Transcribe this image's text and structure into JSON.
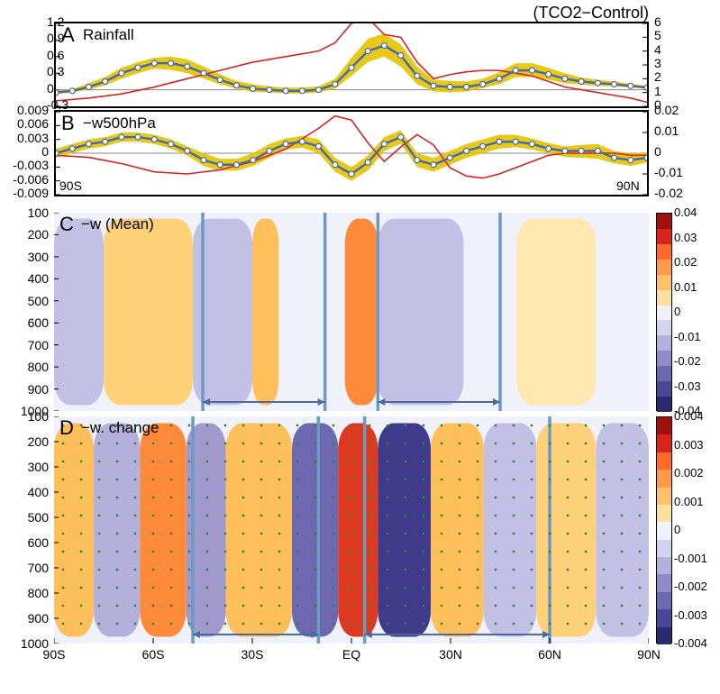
{
  "title": "(TCO2−Control)",
  "xdomain": [
    -90,
    90
  ],
  "xlabels": [
    "90S",
    "60S",
    "30S",
    "EQ",
    "30N",
    "60N",
    "90N"
  ],
  "xlabel_vals": [
    -90,
    -60,
    -30,
    0,
    30,
    60,
    90
  ],
  "panelA": {
    "letter": "A",
    "name": "Rainfall",
    "left_ticks": [
      "-0.3",
      "0",
      "0.3",
      "0.6",
      "0.9",
      "1.2"
    ],
    "left_vals": [
      -0.3,
      0,
      0.3,
      0.6,
      0.9,
      1.2
    ],
    "right_ticks": [
      "0",
      "1",
      "2",
      "3",
      "4",
      "5",
      "6"
    ],
    "right_vals": [
      0,
      1,
      2,
      3,
      4,
      5,
      6
    ],
    "colors": {
      "blue": "#4a6aa0",
      "red": "#d8241f",
      "band": "#e4c400",
      "marker_face": "#ffffff",
      "marker_edge": "#4a6aa0",
      "zero": "#888888"
    },
    "line_widths": {
      "blue": 2.5,
      "red": 1.6,
      "band": 10
    },
    "blue_x": [
      -90,
      -85,
      -80,
      -75,
      -70,
      -65,
      -60,
      -55,
      -50,
      -45,
      -40,
      -35,
      -30,
      -25,
      -20,
      -15,
      -10,
      -5,
      0,
      5,
      10,
      15,
      20,
      25,
      30,
      35,
      40,
      45,
      50,
      55,
      60,
      65,
      70,
      75,
      80,
      85,
      90
    ],
    "blue_y": [
      -0.05,
      -0.02,
      0.05,
      0.15,
      0.3,
      0.4,
      0.48,
      0.48,
      0.42,
      0.3,
      0.18,
      0.08,
      0.02,
      0.0,
      -0.02,
      -0.02,
      0.0,
      0.1,
      0.4,
      0.7,
      0.8,
      0.62,
      0.25,
      0.07,
      0.05,
      0.05,
      0.1,
      0.2,
      0.35,
      0.35,
      0.28,
      0.2,
      0.15,
      0.12,
      0.1,
      0.07,
      0.04
    ],
    "band_lo": [
      -0.08,
      -0.05,
      0.0,
      0.08,
      0.2,
      0.3,
      0.38,
      0.36,
      0.3,
      0.2,
      0.1,
      0.02,
      -0.04,
      -0.05,
      -0.07,
      -0.07,
      -0.05,
      0.02,
      0.25,
      0.5,
      0.6,
      0.42,
      0.1,
      -0.03,
      -0.05,
      -0.03,
      0.03,
      0.1,
      0.23,
      0.23,
      0.18,
      0.12,
      0.09,
      0.07,
      0.06,
      0.04,
      0.02
    ],
    "band_hi": [
      -0.02,
      0.01,
      0.12,
      0.23,
      0.4,
      0.5,
      0.58,
      0.6,
      0.55,
      0.42,
      0.28,
      0.16,
      0.1,
      0.06,
      0.04,
      0.04,
      0.06,
      0.2,
      0.58,
      0.92,
      1.02,
      0.82,
      0.42,
      0.18,
      0.16,
      0.15,
      0.2,
      0.32,
      0.48,
      0.48,
      0.4,
      0.3,
      0.22,
      0.18,
      0.15,
      0.11,
      0.07
    ],
    "red_x": [
      -90,
      -80,
      -70,
      -60,
      -50,
      -40,
      -30,
      -20,
      -10,
      -5,
      0,
      5,
      10,
      15,
      20,
      25,
      30,
      35,
      40,
      45,
      50,
      55,
      60,
      65,
      70,
      75,
      80,
      85,
      90
    ],
    "red_y": [
      0.4,
      0.6,
      0.9,
      1.4,
      2.0,
      2.6,
      3.2,
      3.6,
      4.0,
      4.6,
      6.0,
      6.4,
      5.2,
      5.0,
      3.2,
      2.0,
      2.3,
      2.5,
      2.6,
      2.6,
      2.4,
      2.2,
      1.8,
      1.4,
      1.2,
      1.0,
      0.8,
      0.6,
      0.3
    ],
    "marker_r": 3
  },
  "panelB": {
    "letter": "B",
    "name": "−w500hPa",
    "left_ticks": [
      "-0.009",
      "-0.006",
      "-0.003",
      "0",
      "0.003",
      "0.006",
      "0.009"
    ],
    "left_vals": [
      -0.009,
      -0.006,
      -0.003,
      0,
      0.003,
      0.006,
      0.009
    ],
    "right_ticks": [
      "-0.02",
      "-0.01",
      "0",
      "0.01",
      "0.02"
    ],
    "right_vals": [
      -0.02,
      -0.01,
      0,
      0.01,
      0.02
    ],
    "colors": {
      "blue": "#4a6aa0",
      "red": "#d8241f",
      "band": "#e4c400",
      "marker_face": "#ffffff",
      "marker_edge": "#4a6aa0",
      "zero": "#888888"
    },
    "line_widths": {
      "blue": 2.5,
      "red": 1.6
    },
    "blue_x": [
      -90,
      -85,
      -80,
      -75,
      -70,
      -65,
      -60,
      -55,
      -50,
      -45,
      -40,
      -35,
      -30,
      -25,
      -20,
      -15,
      -10,
      -5,
      0,
      5,
      10,
      15,
      20,
      25,
      30,
      35,
      40,
      45,
      50,
      55,
      60,
      65,
      70,
      75,
      80,
      85,
      90
    ],
    "blue_y": [
      0.0,
      0.001,
      0.002,
      0.0025,
      0.0035,
      0.0035,
      0.003,
      0.002,
      0.0005,
      -0.0015,
      -0.0025,
      -0.0025,
      -0.0015,
      0.0005,
      0.002,
      0.0025,
      0.0015,
      -0.0025,
      -0.0045,
      -0.002,
      0.002,
      0.0035,
      -0.0015,
      -0.0025,
      -0.001,
      0.0005,
      0.0015,
      0.0025,
      0.0025,
      0.002,
      0.001,
      0.0005,
      0.0005,
      0.0005,
      -0.001,
      -0.0015,
      -0.001
    ],
    "band_lo": [
      -0.001,
      0.0,
      0.001,
      0.0015,
      0.0025,
      0.0025,
      0.002,
      0.001,
      -0.0005,
      -0.0028,
      -0.0038,
      -0.0038,
      -0.0028,
      -0.001,
      0.0008,
      0.0012,
      0.0,
      -0.004,
      -0.006,
      -0.0038,
      0.0005,
      0.002,
      -0.003,
      -0.004,
      -0.0025,
      -0.001,
      0.0,
      0.001,
      0.0013,
      0.0008,
      0.0,
      -0.0008,
      -0.001,
      -0.0012,
      -0.0022,
      -0.0028,
      -0.002
    ],
    "band_hi": [
      0.001,
      0.002,
      0.003,
      0.0035,
      0.0045,
      0.0045,
      0.004,
      0.003,
      0.0015,
      0.0,
      -0.0012,
      -0.0012,
      0.0,
      0.002,
      0.0032,
      0.0038,
      0.003,
      -0.001,
      -0.003,
      -0.0005,
      0.0035,
      0.005,
      0.0,
      -0.001,
      0.0005,
      0.002,
      0.003,
      0.004,
      0.004,
      0.0032,
      0.0022,
      0.0015,
      0.0018,
      0.002,
      0.0005,
      0.0,
      0.0002
    ],
    "red_x": [
      -90,
      -80,
      -70,
      -60,
      -50,
      -40,
      -30,
      -20,
      -10,
      -5,
      0,
      5,
      10,
      15,
      20,
      25,
      30,
      35,
      40,
      45,
      50,
      55,
      60,
      65,
      70,
      75,
      80,
      85,
      90
    ],
    "red_y": [
      -0.001,
      -0.002,
      -0.005,
      -0.009,
      -0.01,
      -0.008,
      -0.004,
      0.002,
      0.012,
      0.018,
      0.016,
      0.005,
      -0.004,
      0.003,
      0.009,
      0.004,
      -0.007,
      -0.011,
      -0.012,
      -0.01,
      -0.007,
      -0.004,
      -0.001,
      0.0,
      0.0,
      0.0,
      0.0,
      -0.001,
      -0.001
    ],
    "marker_r": 3,
    "x_axis_ends": {
      "left": "90S",
      "right": "90N"
    }
  },
  "panelC": {
    "letter": "C",
    "name": "−w (Mean)",
    "ylabels": [
      "100",
      "200",
      "300",
      "400",
      "500",
      "600",
      "700",
      "800",
      "900",
      "1000"
    ],
    "yvals": [
      100,
      200,
      300,
      400,
      500,
      600,
      700,
      800,
      900,
      1000
    ],
    "vlines_x": [
      -45,
      -8,
      8,
      45
    ],
    "arrows": [
      [
        -45,
        -8
      ],
      [
        8,
        45
      ]
    ],
    "vline_color": "#6b9ac4",
    "arrow_color": "#4a6aa0",
    "stripes": {
      "colors": [
        "#c3c0e5",
        "#ffd27a",
        "#c3c0e5",
        "#ffbf5a",
        "#eff1fb",
        "#ff8a3a",
        "#c3c0e5",
        "#eff1fb",
        "#ffe9b0",
        "#eff1fb"
      ],
      "x": [
        -90,
        -75,
        -48,
        -30,
        -22,
        -2,
        8,
        34,
        50,
        74
      ],
      "w": [
        15,
        27,
        18,
        8,
        20,
        10,
        26,
        16,
        24,
        16
      ]
    }
  },
  "panelD": {
    "letter": "D",
    "name": "−w. change",
    "ylabels": [
      "100",
      "200",
      "300",
      "400",
      "500",
      "600",
      "700",
      "800",
      "900",
      "1000"
    ],
    "yvals": [
      100,
      200,
      300,
      400,
      500,
      600,
      700,
      800,
      900,
      1000
    ],
    "vlines_x": [
      -48,
      -10,
      4,
      60
    ],
    "arrows": [
      [
        -48,
        -10
      ],
      [
        4,
        60
      ]
    ],
    "vline_color": "#6b9ac4",
    "arrow_color": "#4a6aa0",
    "stipple_color": "#2e8b2e",
    "stipple_spacing": 20,
    "stripes": {
      "colors": [
        "#ffbf5a",
        "#b4b0dc",
        "#ff8a3a",
        "#a09acc",
        "#ffbf5a",
        "#6d68b0",
        "#dc3a20",
        "#3f3a8a",
        "#ffbf5a",
        "#c3c0e5",
        "#ffd27a",
        "#c3c0e5"
      ],
      "x": [
        -90,
        -78,
        -64,
        -50,
        -38,
        -18,
        -4,
        8,
        24,
        40,
        56,
        74
      ],
      "w": [
        12,
        14,
        14,
        12,
        20,
        14,
        12,
        16,
        16,
        16,
        18,
        16
      ]
    }
  },
  "panelD_xticks": {
    "labels": [
      "90S",
      "60S",
      "30S",
      "EQ",
      "30N",
      "60N",
      "90N"
    ],
    "vals": [
      -90,
      -60,
      -30,
      0,
      30,
      60,
      90
    ]
  },
  "colorbarC": {
    "ticks": [
      "0.04",
      "0.03",
      "0.02",
      "0.01",
      "0",
      "-0.01",
      "-0.02",
      "-0.03",
      "-0.04"
    ],
    "colors_top_to_bottom": [
      "#a01010",
      "#d8241f",
      "#ff6a2a",
      "#ff9a4a",
      "#ffc06a",
      "#ffe0a0",
      "#eff1fb",
      "#d6d3ec",
      "#b4b0dc",
      "#908ac8",
      "#6d68b0",
      "#4a469a",
      "#2a2a70"
    ]
  },
  "colorbarD": {
    "ticks": [
      "0.004",
      "0.003",
      "0.002",
      "0.001",
      "0",
      "-0.001",
      "-0.002",
      "-0.003",
      "-0.004"
    ],
    "colors_top_to_bottom": [
      "#a01010",
      "#d8241f",
      "#ff6a2a",
      "#ff9a4a",
      "#ffc06a",
      "#ffe0a0",
      "#eff1fb",
      "#d6d3ec",
      "#b4b0dc",
      "#908ac8",
      "#6d68b0",
      "#4a469a",
      "#2a2a70"
    ]
  }
}
